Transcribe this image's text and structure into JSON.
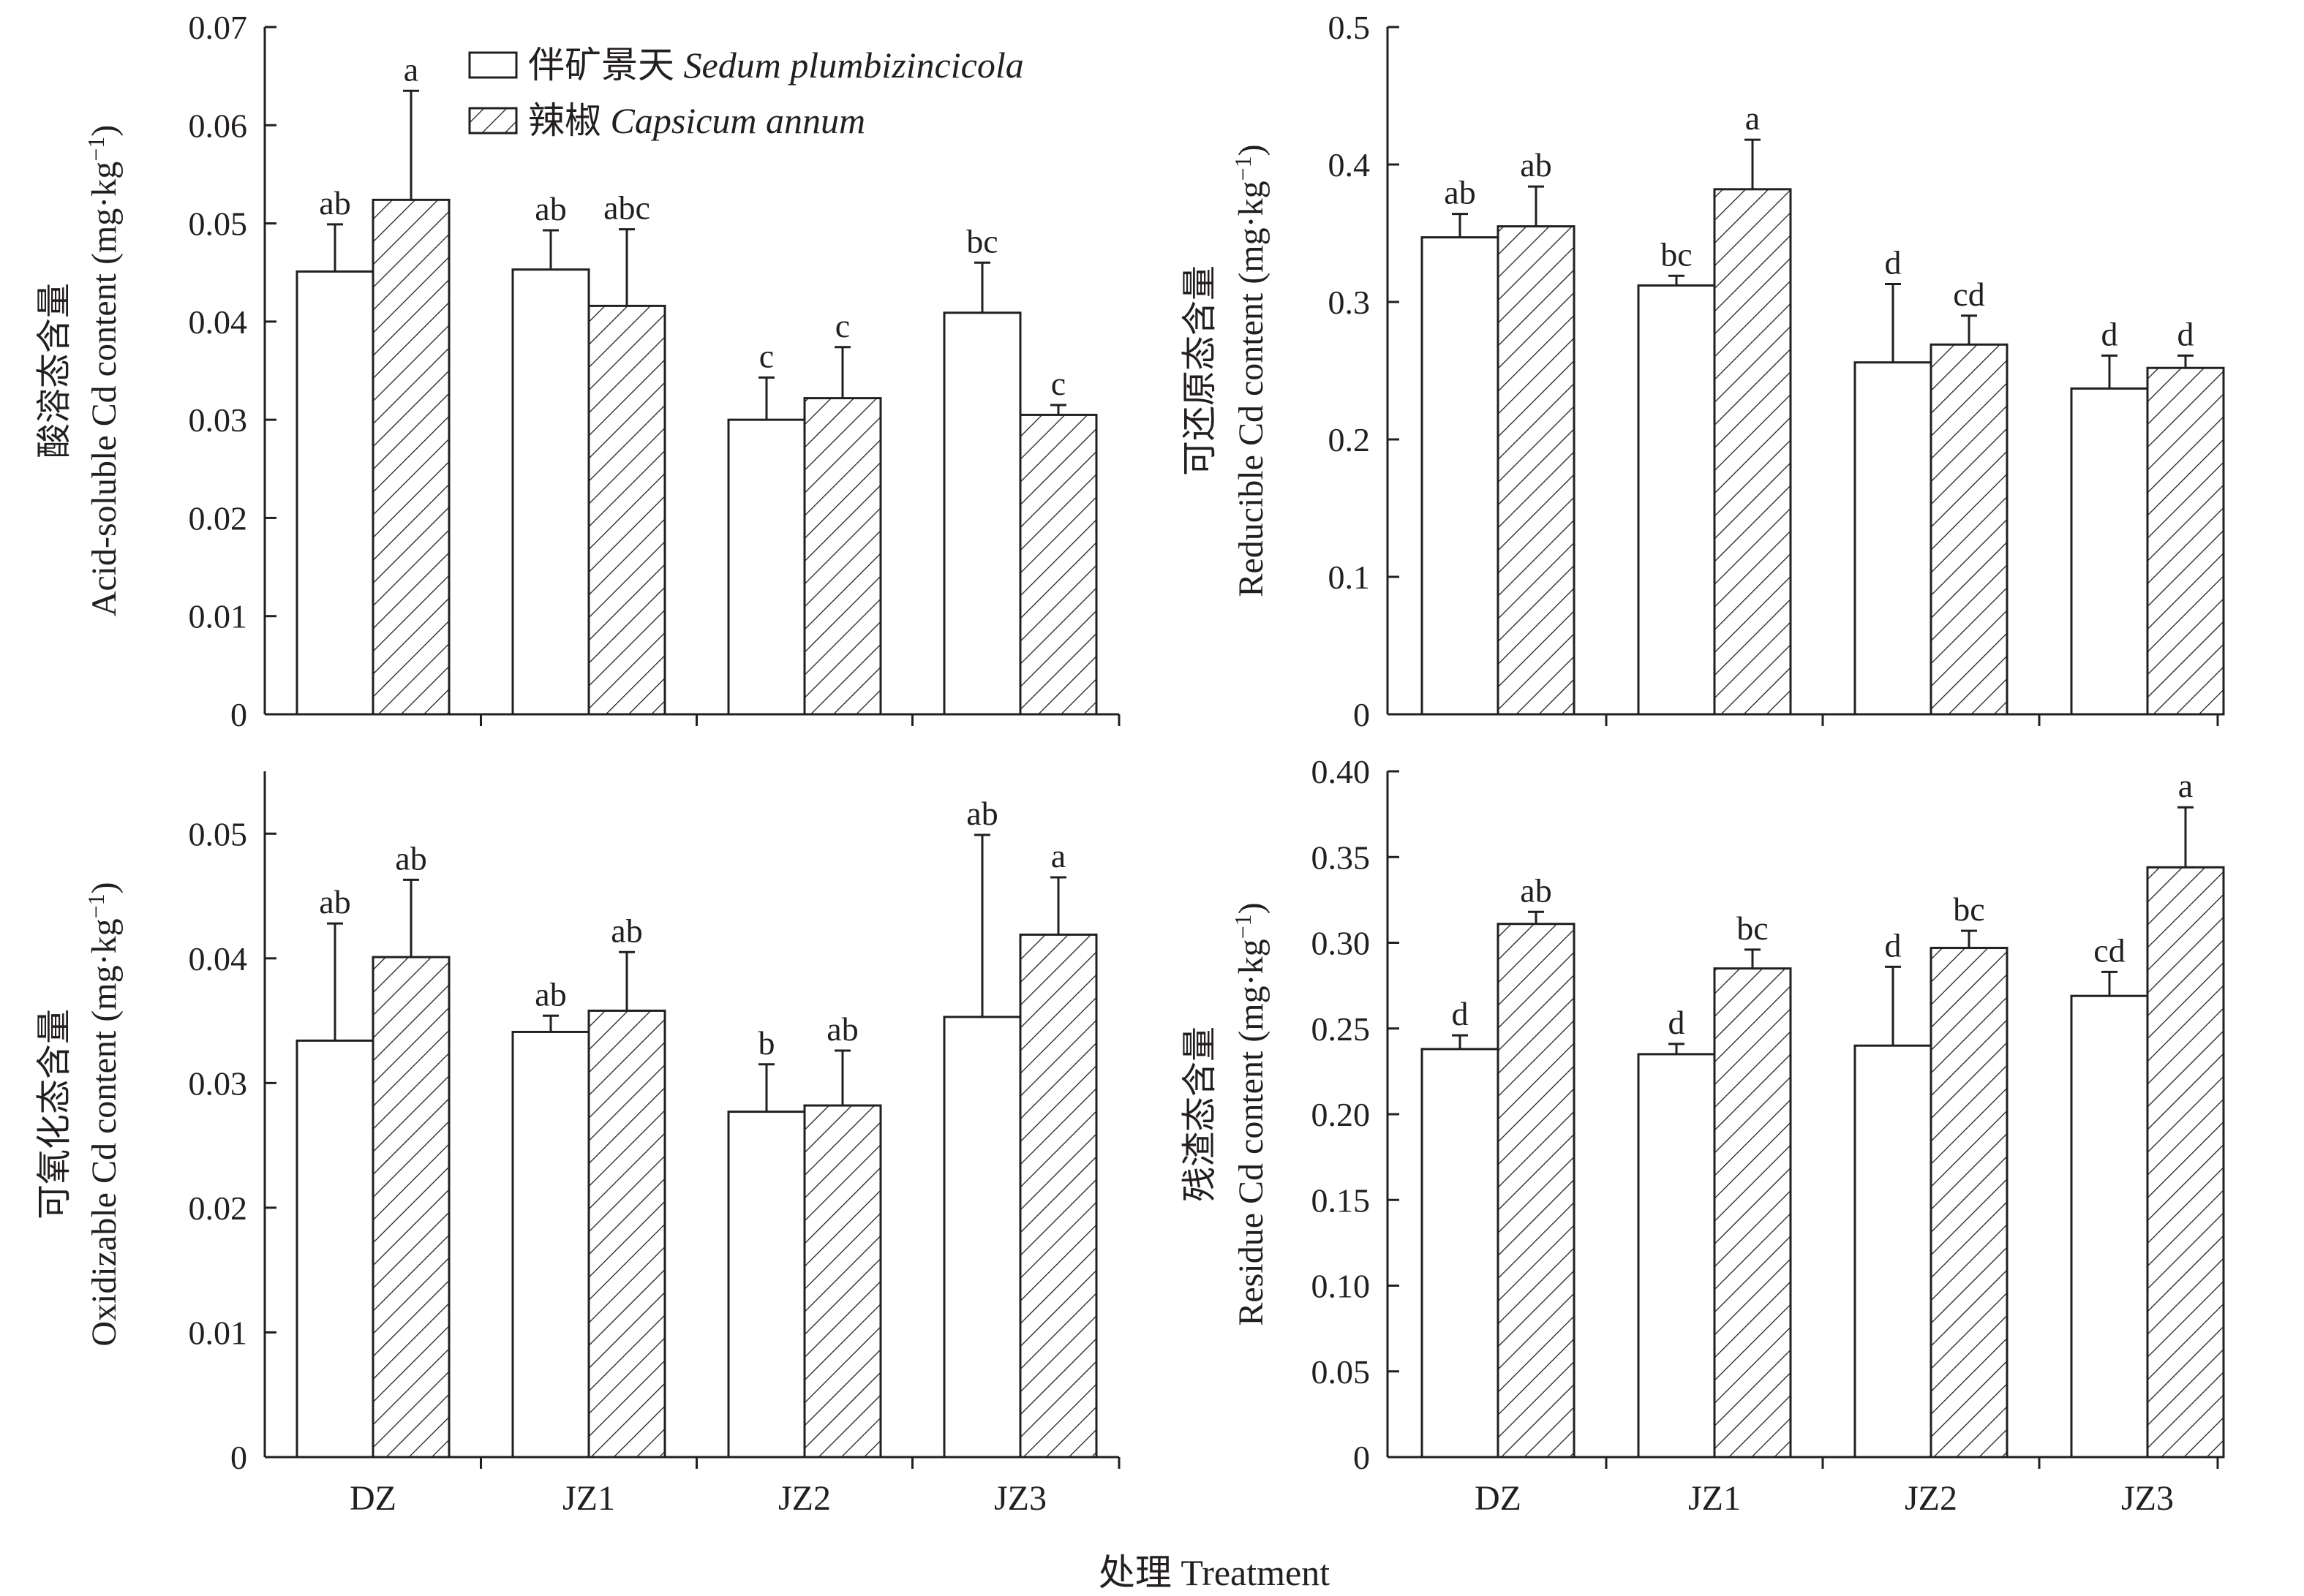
{
  "figure": {
    "x_title": "处理 Treatment",
    "legend": [
      {
        "name_cn": "伴矿景天",
        "name_latin": "Sedum plumbizincicola",
        "pattern": "open"
      },
      {
        "name_cn": "辣椒",
        "name_latin": "Capsicum annum",
        "pattern": "hatched"
      }
    ]
  },
  "chart_data": [
    {
      "type": "bar",
      "ylabel_cn": "酸溶态含量",
      "ylabel_en": "Acid-soluble Cd content (mg·kg",
      "ylabel_sup": "−1",
      "ylabel_close": ")",
      "ylim": [
        0,
        0.07
      ],
      "yticks": [
        "0",
        "0.01",
        "0.02",
        "0.03",
        "0.04",
        "0.05",
        "0.06",
        "0.07"
      ],
      "categories": [
        "DZ",
        "JZ1",
        "JZ2",
        "JZ3"
      ],
      "series": [
        {
          "name": "伴矿景天 Sedum plumbizincicola",
          "values": [
            0.0451,
            0.0453,
            0.03,
            0.0409
          ],
          "errors": [
            0.0048,
            0.004,
            0.0043,
            0.0051
          ],
          "letters": [
            "ab",
            "ab",
            "c",
            "bc"
          ]
        },
        {
          "name": "辣椒 Capsicum annum",
          "values": [
            0.0524,
            0.0416,
            0.0322,
            0.0305
          ],
          "errors": [
            0.0111,
            0.0078,
            0.0052,
            0.001
          ],
          "letters": [
            "a",
            "abc",
            "c",
            "c"
          ]
        }
      ],
      "show_xticklabels": false
    },
    {
      "type": "bar",
      "ylabel_cn": "可还原态含量",
      "ylabel_en": "Reducible Cd content (mg·kg",
      "ylabel_sup": "−1",
      "ylabel_close": ")",
      "ylim": [
        0,
        0.5
      ],
      "yticks": [
        "0",
        "0.1",
        "0.2",
        "0.3",
        "0.4",
        "0.5"
      ],
      "categories": [
        "DZ",
        "JZ1",
        "JZ2",
        "JZ3"
      ],
      "series": [
        {
          "name": "伴矿景天 Sedum plumbizincicola",
          "values": [
            0.347,
            0.312,
            0.256,
            0.237
          ],
          "errors": [
            0.017,
            0.007,
            0.057,
            0.024
          ],
          "letters": [
            "ab",
            "bc",
            "d",
            "d"
          ]
        },
        {
          "name": "辣椒 Capsicum annum",
          "values": [
            0.355,
            0.382,
            0.269,
            0.252
          ],
          "errors": [
            0.029,
            0.036,
            0.021,
            0.009
          ],
          "letters": [
            "ab",
            "a",
            "cd",
            "d"
          ]
        }
      ],
      "show_xticklabels": false
    },
    {
      "type": "bar",
      "ylabel_cn": "可氧化态含量",
      "ylabel_en": "Oxidizable Cd content (mg·kg",
      "ylabel_sup": "−1",
      "ylabel_close": ")",
      "ylim": [
        0,
        0.055
      ],
      "yticks": [
        "0",
        "0.01",
        "0.02",
        "0.03",
        "0.04",
        "0.05"
      ],
      "ytick_values": [
        0,
        0.01,
        0.02,
        0.03,
        0.04,
        0.05
      ],
      "categories": [
        "DZ",
        "JZ1",
        "JZ2",
        "JZ3"
      ],
      "series": [
        {
          "name": "伴矿景天 Sedum plumbizincicola",
          "values": [
            0.0334,
            0.0341,
            0.0277,
            0.0353
          ],
          "errors": [
            0.0094,
            0.0013,
            0.0038,
            0.0146
          ],
          "letters": [
            "ab",
            "ab",
            "b",
            "ab"
          ]
        },
        {
          "name": "辣椒 Capsicum annum",
          "values": [
            0.0401,
            0.0358,
            0.0282,
            0.0419
          ],
          "errors": [
            0.0062,
            0.0047,
            0.0044,
            0.0046
          ],
          "letters": [
            "ab",
            "ab",
            "ab",
            "a"
          ]
        }
      ],
      "show_xticklabels": true
    },
    {
      "type": "bar",
      "ylabel_cn": "残渣态含量",
      "ylabel_en": "Residue Cd content (mg·kg",
      "ylabel_sup": "−1",
      "ylabel_close": ")",
      "ylim": [
        0,
        0.4
      ],
      "yticks": [
        "0",
        "0.05",
        "0.10",
        "0.15",
        "0.20",
        "0.25",
        "0.30",
        "0.35",
        "0.40"
      ],
      "categories": [
        "DZ",
        "JZ1",
        "JZ2",
        "JZ3"
      ],
      "series": [
        {
          "name": "伴矿景天 Sedum plumbizincicola",
          "values": [
            0.238,
            0.235,
            0.24,
            0.269
          ],
          "errors": [
            0.008,
            0.006,
            0.046,
            0.014
          ],
          "letters": [
            "d",
            "d",
            "d",
            "cd"
          ]
        },
        {
          "name": "辣椒 Capsicum annum",
          "values": [
            0.311,
            0.285,
            0.297,
            0.344
          ],
          "errors": [
            0.007,
            0.011,
            0.01,
            0.035
          ],
          "letters": [
            "ab",
            "bc",
            "bc",
            "a"
          ]
        }
      ],
      "show_xticklabels": true
    }
  ]
}
